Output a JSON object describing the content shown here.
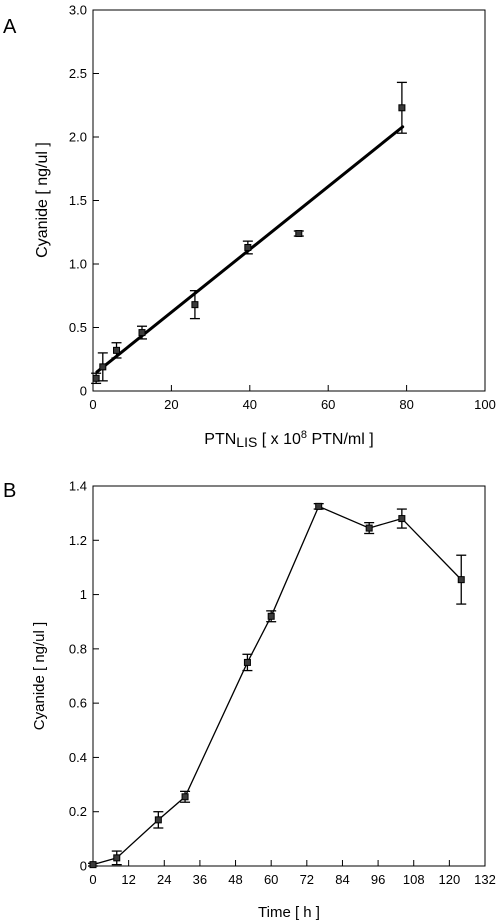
{
  "chart_data": [
    {
      "panel": "A",
      "type": "scatter",
      "xlabel_parts": [
        "PTN",
        "LIS",
        " [ x 10",
        "8",
        " PTN/ml ]"
      ],
      "ylabel": "Cyanide [ ng/ul ]",
      "xlim": [
        0,
        100
      ],
      "ylim": [
        0,
        3.0
      ],
      "x_ticks": [
        0,
        20,
        40,
        60,
        80,
        100
      ],
      "x_tick_labels": [
        "0",
        "20",
        "40",
        "60",
        "80",
        "100"
      ],
      "y_ticks": [
        0,
        0.5,
        1.0,
        1.5,
        2.0,
        2.5,
        3.0
      ],
      "y_tick_labels": [
        "0",
        "0.5",
        "1.0",
        "1.5",
        "2.0",
        "2.5",
        "3.0"
      ],
      "grid": false,
      "points": [
        {
          "x": 0.8,
          "y": 0.1,
          "err": 0.04
        },
        {
          "x": 2.5,
          "y": 0.19,
          "err": 0.11
        },
        {
          "x": 6.0,
          "y": 0.32,
          "err": 0.06
        },
        {
          "x": 12.5,
          "y": 0.46,
          "err": 0.05
        },
        {
          "x": 26.0,
          "y": 0.68,
          "err": 0.11
        },
        {
          "x": 39.5,
          "y": 1.13,
          "err": 0.05
        },
        {
          "x": 52.5,
          "y": 1.24,
          "err": 0.02
        },
        {
          "x": 78.8,
          "y": 2.23,
          "err": 0.2
        }
      ],
      "fit_line": {
        "x": [
          1.0,
          79.0
        ],
        "y": [
          0.15,
          2.08
        ]
      }
    },
    {
      "panel": "B",
      "type": "line",
      "xlabel": "Time [ h ]",
      "ylabel": "Cyanide [ ng/ul ]",
      "xlim": [
        0,
        132
      ],
      "ylim": [
        0,
        1.4
      ],
      "x_ticks": [
        0,
        12,
        24,
        36,
        48,
        60,
        72,
        84,
        96,
        108,
        120,
        132
      ],
      "x_tick_labels": [
        "0",
        "12",
        "24",
        "36",
        "48",
        "60",
        "72",
        "84",
        "96",
        "108",
        "120",
        "132"
      ],
      "y_ticks": [
        0,
        0.2,
        0.4,
        0.6,
        0.8,
        1.0,
        1.2,
        1.4
      ],
      "y_tick_labels": [
        "0",
        "0.2",
        "0.4",
        "0.6",
        "0.8",
        "1",
        "1.2",
        "1.4"
      ],
      "grid": false,
      "x": [
        0,
        8,
        22,
        31,
        52,
        60,
        76,
        93,
        104,
        124
      ],
      "y": [
        0.005,
        0.03,
        0.17,
        0.255,
        0.75,
        0.92,
        1.325,
        1.245,
        1.28,
        1.055
      ],
      "err": [
        0.005,
        0.025,
        0.03,
        0.02,
        0.03,
        0.02,
        0.01,
        0.02,
        0.035,
        0.09
      ]
    }
  ]
}
